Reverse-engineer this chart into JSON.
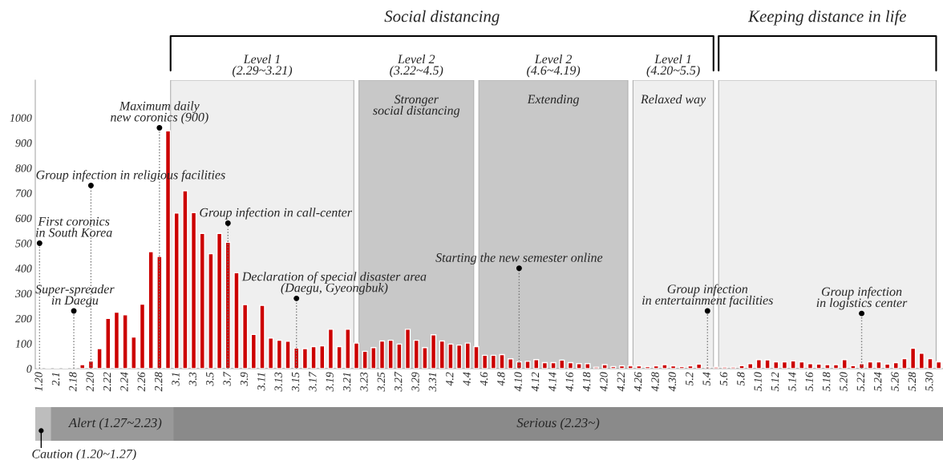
{
  "chart_data": [
    {
      "type": "bar",
      "categories": [
        "1.20",
        null,
        "2.1",
        null,
        "2.18",
        null,
        "2.20",
        null,
        "2.22",
        null,
        "2.24",
        null,
        "2.26",
        null,
        "2.28",
        null,
        "3.1",
        null,
        "3.3",
        null,
        "3.5",
        null,
        "3.7",
        null,
        "3.9",
        null,
        "3.11",
        null,
        "3.13",
        null,
        "3.15",
        null,
        "3.17",
        null,
        "3.19",
        null,
        "3.21",
        null,
        "3.23",
        null,
        "3.25",
        null,
        "3.27",
        null,
        "3.29",
        null,
        "3.31",
        null,
        "4.2",
        null,
        "4.4",
        null,
        "4.6",
        null,
        "4.8",
        null,
        "4.10",
        null,
        "4.12",
        null,
        "4.14",
        null,
        "4.16",
        null,
        "4.18",
        null,
        "4.20",
        null,
        "4.22",
        null,
        "4.26",
        null,
        "4.28",
        null,
        "4.30",
        null,
        "5.2",
        null,
        "5.4",
        null,
        "5.6",
        null,
        "5.8",
        null,
        "5.10",
        null,
        "5.12",
        null,
        "5.14",
        null,
        "5.16",
        null,
        "5.18",
        null,
        "5.20",
        null,
        "5.22",
        null,
        "5.24",
        null,
        "5.26",
        null,
        "5.28",
        null,
        "5.30",
        null
      ],
      "values": [
        5,
        5,
        5,
        5,
        5,
        16,
        30,
        80,
        200,
        225,
        215,
        126,
        257,
        466,
        447,
        948,
        620,
        709,
        622,
        539,
        458,
        539,
        504,
        382,
        255,
        136,
        252,
        122,
        113,
        109,
        82,
        80,
        88,
        91,
        157,
        88,
        157,
        102,
        69,
        84,
        110,
        113,
        98,
        157,
        113,
        84,
        135,
        110,
        98,
        94,
        102,
        88,
        53,
        53,
        56,
        39,
        27,
        29,
        36,
        24,
        24,
        34,
        24,
        20,
        20,
        6,
        16,
        8,
        11,
        11,
        11,
        8,
        11,
        16,
        11,
        8,
        11,
        18,
        6,
        6,
        6,
        6,
        12,
        20,
        36,
        35,
        27,
        27,
        31,
        27,
        20,
        18,
        16,
        16,
        36,
        12,
        20,
        27,
        27,
        18,
        24,
        40,
        81,
        61,
        40,
        27
      ],
      "color": "#cc0000",
      "ylim": [
        0,
        1150
      ],
      "yticks": [
        0,
        100,
        200,
        300,
        400,
        500,
        600,
        700,
        800,
        900,
        1000
      ],
      "bands": [
        {
          "axis": "x",
          "from": "3.1",
          "to": "3.21",
          "label": "Level 1\n(2.29~3.21)",
          "color": "#efefef"
        },
        {
          "axis": "x",
          "from": "3.23",
          "to": "4.4",
          "label": "Level 2\n(3.22~4.5)",
          "color": "#c8c8c8"
        },
        {
          "axis": "x",
          "from": "4.6",
          "to": "4.22",
          "label": "Level 2\n(4.6~4.19)",
          "color": "#c8c8c8"
        },
        {
          "axis": "x",
          "from": "4.26",
          "to": "5.4",
          "label": "Level 1\n(4.20~5.5)",
          "color": "#efefef"
        },
        {
          "axis": "x",
          "from": "5.6",
          "to": "5.30",
          "color": "#efefef"
        }
      ],
      "annotations": [
        "Social distancing",
        "Keeping distance in life",
        "Stronger\nsocial distancing",
        "Extending",
        "Relaxed way",
        {
          "text": "First coronics\nin South Korea",
          "x": "1.20",
          "y": 500
        },
        {
          "text": "Super-spreader\nin Daegu",
          "x": "2.18",
          "y": 230
        },
        {
          "text": "Group infection in religious facilities",
          "x": "2.20",
          "y": 730
        },
        {
          "text": "Maximum daily\nnew coronics (900)",
          "x": "2.28",
          "y": 960
        },
        {
          "text": "Group infection in call-center",
          "x": "3.7",
          "y": 580
        },
        {
          "text": "Declaration of special disaster area\n(Daegu, Gyeongbuk)",
          "x": "3.15",
          "y": 280
        },
        {
          "text": "Starting the new semester online",
          "x": "4.10",
          "y": 400
        },
        {
          "text": "Group infection\nin entertainment facilities",
          "x": "5.4",
          "y": 230
        },
        {
          "text": "Group infection\nin logistics center",
          "x": "5.22",
          "y": 220
        }
      ]
    },
    {
      "type": "other",
      "annotations": [
        "Caution (1.20~1.27)",
        "Alert (1.27~2.23)",
        "Serious (2.23~)"
      ]
    }
  ]
}
